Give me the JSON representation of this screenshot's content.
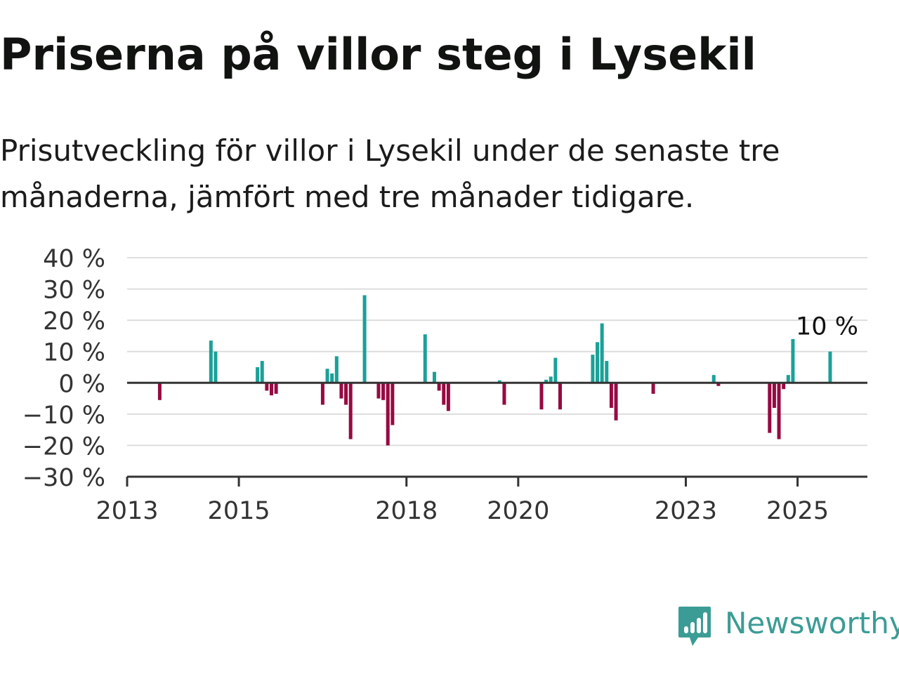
{
  "title": "Priserna på villor steg i Lysekil",
  "subtitle": "Prisutveckling för villor i Lysekil under de senaste tre månaderna, jämfört med tre månader tidigare.",
  "brand": "Newsworthy",
  "colors": {
    "positive": "#1aa198",
    "negative": "#960a42",
    "grid": "#dddddd",
    "zero_line": "#333333",
    "axis_text": "#333333",
    "brand": "#3b9c95"
  },
  "icons": {
    "logo": "bar-chart-speech-bubble-icon"
  },
  "chart_data": {
    "type": "bar",
    "ylim": [
      -30,
      40
    ],
    "yticks": [
      40,
      30,
      20,
      10,
      0,
      -10,
      -20,
      -30
    ],
    "ytick_labels": [
      "40 %",
      "30 %",
      "20 %",
      "10 %",
      "0 %",
      "−10 %",
      "−20 %",
      "−30 %"
    ],
    "xlim": [
      "2013-01",
      "2026-04"
    ],
    "xtick_labels": [
      {
        "date": "2013-01",
        "label": "2013"
      },
      {
        "date": "2015-01",
        "label": "2015"
      },
      {
        "date": "2018-01",
        "label": "2018"
      },
      {
        "date": "2020-01",
        "label": "2020"
      },
      {
        "date": "2023-01",
        "label": "2023"
      },
      {
        "date": "2025-01",
        "label": "2025"
      }
    ],
    "grid": true,
    "annotation": {
      "date": "2025-08",
      "text": "10 %"
    },
    "series": [
      {
        "points": [
          {
            "x": "2013-08",
            "y": -5.5
          },
          {
            "x": "2014-07",
            "y": 13.5
          },
          {
            "x": "2014-08",
            "y": 10.0
          },
          {
            "x": "2015-05",
            "y": 5.0
          },
          {
            "x": "2015-06",
            "y": 7.0
          },
          {
            "x": "2015-07",
            "y": -2.5
          },
          {
            "x": "2015-08",
            "y": -4.0
          },
          {
            "x": "2015-09",
            "y": -3.5
          },
          {
            "x": "2016-07",
            "y": -7.0
          },
          {
            "x": "2016-08",
            "y": 4.5
          },
          {
            "x": "2016-09",
            "y": 3.0
          },
          {
            "x": "2016-10",
            "y": 8.5
          },
          {
            "x": "2016-11",
            "y": -5.0
          },
          {
            "x": "2016-12",
            "y": -7.0
          },
          {
            "x": "2017-01",
            "y": -18.0
          },
          {
            "x": "2017-04",
            "y": 28.0
          },
          {
            "x": "2017-07",
            "y": -5.0
          },
          {
            "x": "2017-08",
            "y": -5.5
          },
          {
            "x": "2017-09",
            "y": -20.0
          },
          {
            "x": "2017-10",
            "y": -13.5
          },
          {
            "x": "2018-05",
            "y": 15.5
          },
          {
            "x": "2018-07",
            "y": 3.5
          },
          {
            "x": "2018-08",
            "y": -2.5
          },
          {
            "x": "2018-09",
            "y": -7.0
          },
          {
            "x": "2018-10",
            "y": -9.0
          },
          {
            "x": "2019-09",
            "y": 0.8
          },
          {
            "x": "2019-10",
            "y": -7.0
          },
          {
            "x": "2020-06",
            "y": -8.5
          },
          {
            "x": "2020-07",
            "y": 1.0
          },
          {
            "x": "2020-08",
            "y": 2.0
          },
          {
            "x": "2020-09",
            "y": 8.0
          },
          {
            "x": "2020-10",
            "y": -8.5
          },
          {
            "x": "2021-05",
            "y": 9.0
          },
          {
            "x": "2021-06",
            "y": 13.0
          },
          {
            "x": "2021-07",
            "y": 19.0
          },
          {
            "x": "2021-08",
            "y": 7.0
          },
          {
            "x": "2021-09",
            "y": -8.0
          },
          {
            "x": "2021-10",
            "y": -12.0
          },
          {
            "x": "2022-06",
            "y": -3.5
          },
          {
            "x": "2023-07",
            "y": 2.5
          },
          {
            "x": "2023-08",
            "y": -1.0
          },
          {
            "x": "2024-07",
            "y": -16.0
          },
          {
            "x": "2024-08",
            "y": -8.0
          },
          {
            "x": "2024-09",
            "y": -18.0
          },
          {
            "x": "2024-10",
            "y": -2.0
          },
          {
            "x": "2024-11",
            "y": 2.5
          },
          {
            "x": "2024-12",
            "y": 14.0
          },
          {
            "x": "2025-08",
            "y": 10.0
          }
        ]
      }
    ]
  }
}
